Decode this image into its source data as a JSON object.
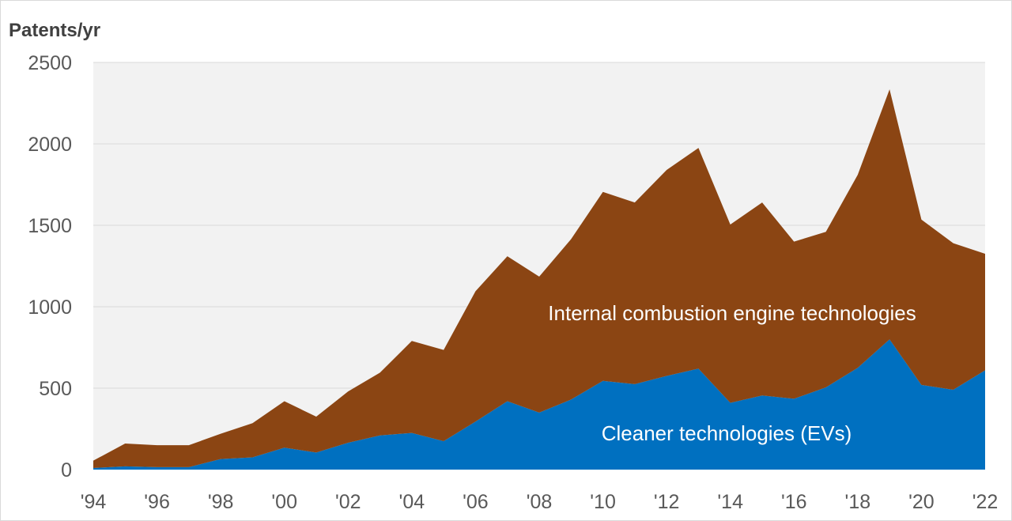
{
  "chart_data": {
    "type": "area",
    "stacked": true,
    "title": "",
    "xlabel": "",
    "ylabel": "Patents/yr",
    "ylim": [
      0,
      2500
    ],
    "yticks": [
      "0",
      "500",
      "1000",
      "1500",
      "2000",
      "2500"
    ],
    "grid": true,
    "x": [
      1994,
      1995,
      1996,
      1997,
      1998,
      1999,
      2000,
      2001,
      2002,
      2003,
      2004,
      2005,
      2006,
      2007,
      2008,
      2009,
      2010,
      2011,
      2012,
      2013,
      2014,
      2015,
      2016,
      2017,
      2018,
      2019,
      2020,
      2021,
      2022
    ],
    "xtick_values": [
      1994,
      1996,
      1998,
      2000,
      2002,
      2004,
      2006,
      2008,
      2010,
      2012,
      2014,
      2016,
      2018,
      2020,
      2022
    ],
    "xtick_labels": [
      "'94",
      "'96",
      "'98",
      "'00",
      "'02",
      "'04",
      "'06",
      "'08",
      "'10",
      "'12",
      "'14",
      "'16",
      "'18",
      "'20",
      "'22"
    ],
    "series": [
      {
        "name": "Cleaner technologies (EVs)",
        "color": "#0070c0",
        "values": [
          10,
          20,
          15,
          15,
          65,
          75,
          135,
          105,
          165,
          210,
          225,
          175,
          295,
          420,
          350,
          430,
          545,
          525,
          575,
          620,
          410,
          455,
          435,
          505,
          625,
          800,
          520,
          490,
          610
        ]
      },
      {
        "name": "Internal combustion engine technologies",
        "color": "#8b4513",
        "values": [
          45,
          140,
          135,
          135,
          155,
          210,
          285,
          220,
          315,
          385,
          565,
          560,
          800,
          890,
          835,
          985,
          1160,
          1115,
          1265,
          1355,
          1095,
          1185,
          965,
          955,
          1185,
          1535,
          1015,
          900,
          715
        ]
      }
    ],
    "annotations": {
      "ice_label": "Internal combustion engine technologies",
      "ev_label": "Cleaner technologies (EVs)"
    },
    "plot_background": "#f2f2f2",
    "grid_color": "#d9d9d9"
  }
}
